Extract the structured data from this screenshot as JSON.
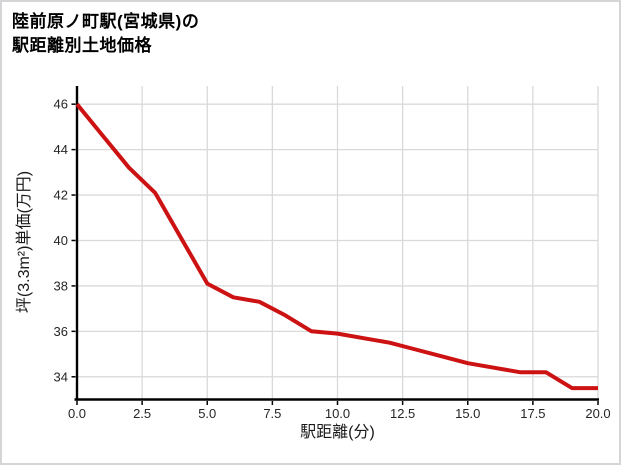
{
  "card": {
    "title_line1": "陸前原ノ町駅(宮城県)の",
    "title_line2": "駅距離別土地価格"
  },
  "colors": {
    "line": "#cc1212",
    "grid": "#d9d9d9",
    "axis": "#000000",
    "tick_label": "#262626",
    "card_border": "#d5d5d7",
    "background": "#ffffff"
  },
  "chart_data": {
    "type": "line",
    "title": "陸前原ノ町駅(宮城県)の駅距離別土地価格",
    "xlabel": "駅距離(分)",
    "ylabel": "坪(3.3m²)単価(万円)",
    "x": [
      0,
      1,
      2,
      3,
      4,
      5,
      6,
      7,
      8,
      9,
      10,
      11,
      12,
      13,
      14,
      15,
      16,
      17,
      18,
      19,
      20
    ],
    "values": [
      46.0,
      44.6,
      43.2,
      42.1,
      40.1,
      38.1,
      37.5,
      37.3,
      36.7,
      36.0,
      35.9,
      35.7,
      35.5,
      35.2,
      34.9,
      34.6,
      34.4,
      34.2,
      34.2,
      33.5,
      33.5
    ],
    "series_name": "駅距離別土地価格",
    "xlim": [
      0,
      20
    ],
    "ylim": [
      33,
      46.8
    ],
    "xticks": {
      "values": [
        0,
        2.5,
        5,
        7.5,
        10,
        12.5,
        15,
        17.5,
        20
      ],
      "labels": [
        "0.0",
        "2.5",
        "5.0",
        "7.5",
        "10.0",
        "12.5",
        "15.0",
        "17.5",
        "20.0"
      ]
    },
    "yticks": {
      "values": [
        34,
        36,
        38,
        40,
        42,
        44,
        46
      ],
      "labels": [
        "34",
        "36",
        "38",
        "40",
        "42",
        "44",
        "46"
      ]
    },
    "grid": true,
    "legend": false,
    "line_color": "#cc1212",
    "line_width": 4
  }
}
